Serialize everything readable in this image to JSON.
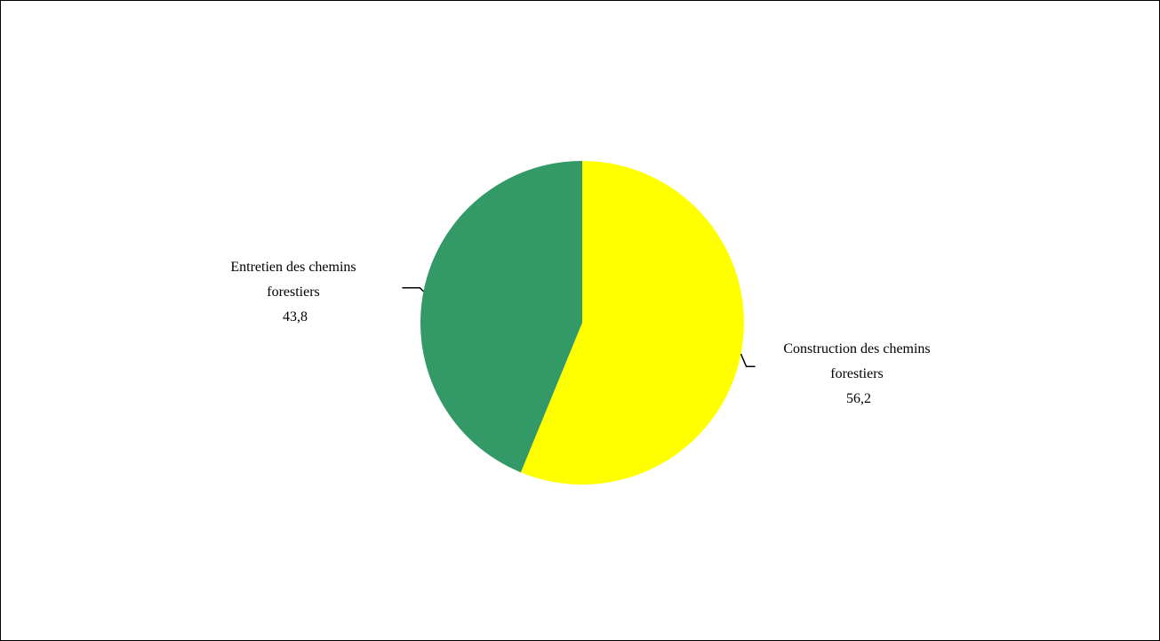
{
  "chart_data": {
    "type": "pie",
    "title": "",
    "start_angle_deg": 0,
    "direction": "clockwise",
    "legend": "none",
    "slices": [
      {
        "label_lines": [
          "Construction des chemins",
          "forestiers"
        ],
        "value": 56.2,
        "value_label": "56,2",
        "color": "#ffff00"
      },
      {
        "label_lines": [
          "Entretien des chemins",
          "forestiers"
        ],
        "value": 43.8,
        "value_label": "43,8",
        "color": "#339966"
      }
    ]
  }
}
